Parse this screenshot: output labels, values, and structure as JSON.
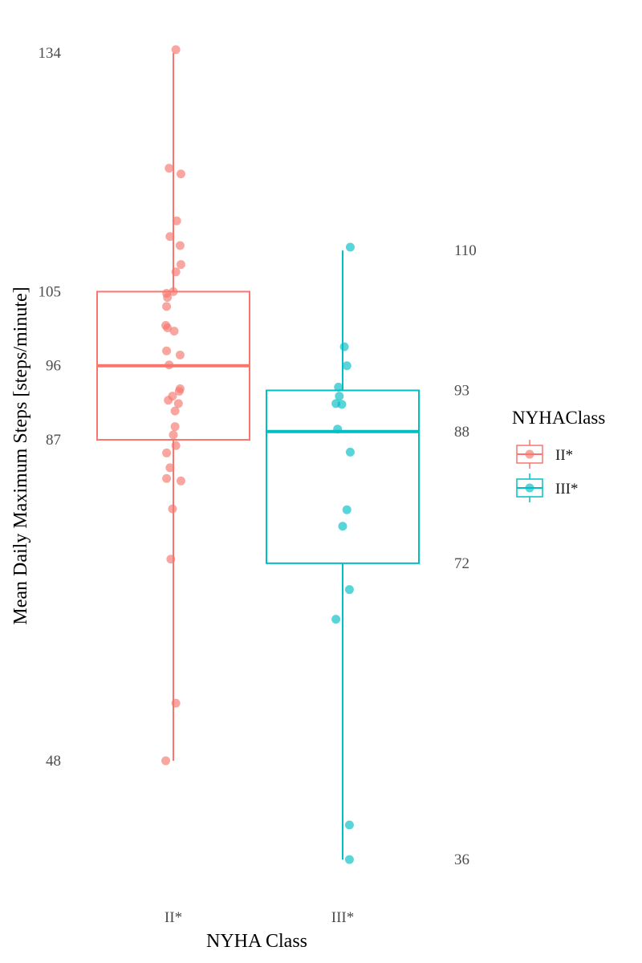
{
  "chart_data": {
    "type": "boxplot",
    "xlabel": "NYHA Class",
    "ylabel": "Mean Daily Maximum Steps [steps/minute]",
    "categories": [
      "II*",
      "III*"
    ],
    "legend": {
      "title": "NYHAClass",
      "placement": "right",
      "entries": [
        "II*",
        "III*"
      ]
    },
    "grid": false,
    "ylim": [
      33,
      135
    ],
    "groups": [
      {
        "name": "II*",
        "color": "#F8766D",
        "stats": {
          "min": 48,
          "q1": 87,
          "median": 96,
          "q3": 105,
          "max": 134
        },
        "labels": [
          "48",
          "87",
          "96",
          "105",
          "134"
        ],
        "points": [
          {
            "dx": 0.03,
            "y": 134.4
          },
          {
            "dx": -0.05,
            "y": 120.0
          },
          {
            "dx": 0.09,
            "y": 119.3
          },
          {
            "dx": 0.04,
            "y": 113.6
          },
          {
            "dx": -0.04,
            "y": 111.7
          },
          {
            "dx": 0.08,
            "y": 110.6
          },
          {
            "dx": 0.09,
            "y": 108.3
          },
          {
            "dx": 0.03,
            "y": 107.4
          },
          {
            "dx": 0.0,
            "y": 105.0
          },
          {
            "dx": -0.08,
            "y": 104.8
          },
          {
            "dx": -0.07,
            "y": 104.3
          },
          {
            "dx": -0.08,
            "y": 103.2
          },
          {
            "dx": -0.09,
            "y": 100.9
          },
          {
            "dx": -0.07,
            "y": 100.6
          },
          {
            "dx": 0.01,
            "y": 100.2
          },
          {
            "dx": -0.08,
            "y": 97.8
          },
          {
            "dx": 0.08,
            "y": 97.3
          },
          {
            "dx": -0.05,
            "y": 96.1
          },
          {
            "dx": 0.08,
            "y": 93.2
          },
          {
            "dx": 0.07,
            "y": 92.9
          },
          {
            "dx": -0.01,
            "y": 92.3
          },
          {
            "dx": -0.06,
            "y": 91.8
          },
          {
            "dx": 0.06,
            "y": 91.4
          },
          {
            "dx": 0.02,
            "y": 90.5
          },
          {
            "dx": 0.02,
            "y": 88.6
          },
          {
            "dx": 0.0,
            "y": 87.6
          },
          {
            "dx": 0.03,
            "y": 86.3
          },
          {
            "dx": -0.08,
            "y": 85.4
          },
          {
            "dx": -0.04,
            "y": 83.6
          },
          {
            "dx": -0.08,
            "y": 82.3
          },
          {
            "dx": 0.09,
            "y": 82.0
          },
          {
            "dx": -0.01,
            "y": 78.6
          },
          {
            "dx": -0.03,
            "y": 72.5
          },
          {
            "dx": 0.03,
            "y": 55.0
          },
          {
            "dx": -0.09,
            "y": 48.0
          }
        ]
      },
      {
        "name": "III*",
        "color": "#00BFC4",
        "stats": {
          "min": 36,
          "q1": 72,
          "median": 88,
          "q3": 93,
          "max": 110
        },
        "labels": [
          "36",
          "72",
          "88",
          "93",
          "110"
        ],
        "points": [
          {
            "dx": 0.09,
            "y": 110.4
          },
          {
            "dx": 0.02,
            "y": 98.3
          },
          {
            "dx": 0.05,
            "y": 96.0
          },
          {
            "dx": -0.05,
            "y": 93.4
          },
          {
            "dx": -0.04,
            "y": 92.3
          },
          {
            "dx": -0.08,
            "y": 91.4
          },
          {
            "dx": -0.01,
            "y": 91.3
          },
          {
            "dx": -0.06,
            "y": 88.3
          },
          {
            "dx": 0.09,
            "y": 85.5
          },
          {
            "dx": 0.05,
            "y": 78.5
          },
          {
            "dx": 0.0,
            "y": 76.5
          },
          {
            "dx": 0.08,
            "y": 68.8
          },
          {
            "dx": -0.08,
            "y": 65.2
          },
          {
            "dx": 0.08,
            "y": 40.2
          },
          {
            "dx": 0.08,
            "y": 36.0
          }
        ]
      }
    ]
  }
}
